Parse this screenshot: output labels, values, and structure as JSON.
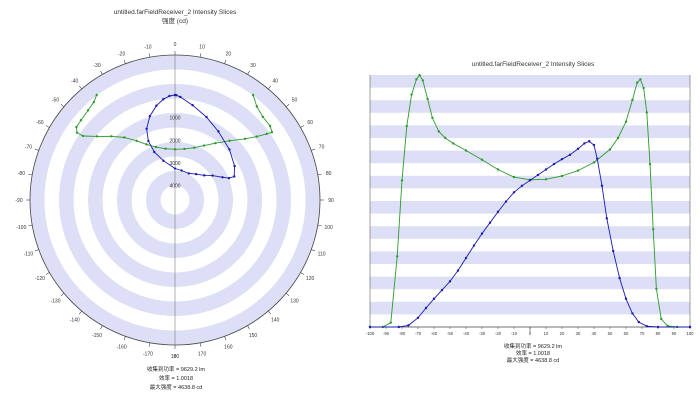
{
  "chart_data": [
    {
      "type": "polar-line",
      "title": "untitled.farFieldReceiver_2 Intensity Slices",
      "subtitle": "强度 (cd)",
      "angle_ticks": [
        -170,
        -160,
        -150,
        -140,
        -130,
        -120,
        -110,
        -100,
        -90,
        -80,
        -70,
        -60,
        -50,
        -40,
        -30,
        -20,
        -10,
        0,
        10,
        20,
        30,
        40,
        50,
        60,
        70,
        80,
        90,
        100,
        110,
        120,
        130,
        140,
        150,
        160,
        170,
        180
      ],
      "radial_ticks": [
        0,
        1000,
        2000,
        3000,
        4000
      ],
      "radial_max": 4640,
      "grid": true,
      "series": [
        {
          "color": "#2e9a2e",
          "points": [
            [
              -90,
              3460
            ],
            [
              -85,
              3600
            ],
            [
              -80,
              3900
            ],
            [
              -75,
              4300
            ],
            [
              -72,
              4580
            ],
            [
              -69,
              4638
            ],
            [
              -66,
              4450
            ],
            [
              -62,
              3900
            ],
            [
              -57,
              3350
            ],
            [
              -50,
              2920
            ],
            [
              -40,
              2640
            ],
            [
              -30,
              2520
            ],
            [
              -20,
              2450
            ],
            [
              -10,
              2410
            ],
            [
              0,
              2400
            ],
            [
              10,
              2420
            ],
            [
              20,
              2480
            ],
            [
              30,
              2580
            ],
            [
              40,
              2780
            ],
            [
              50,
              3150
            ],
            [
              58,
              3650
            ],
            [
              63,
              4050
            ],
            [
              67,
              4400
            ],
            [
              69,
              4590
            ],
            [
              72,
              4420
            ],
            [
              76,
              4000
            ],
            [
              82,
              3650
            ],
            [
              90,
              3450
            ]
          ]
        },
        {
          "color": "#1a1ab0",
          "points": [
            [
              -90,
              0
            ],
            [
              -80,
              250
            ],
            [
              -70,
              550
            ],
            [
              -60,
              950
            ],
            [
              -50,
              1450
            ],
            [
              -40,
              1950
            ],
            [
              -30,
              2350
            ],
            [
              -20,
              2680
            ],
            [
              -10,
              2950
            ],
            [
              0,
              3250
            ],
            [
              5,
              3350
            ],
            [
              10,
              3520
            ],
            [
              15,
              3620
            ],
            [
              20,
              3780
            ],
            [
              25,
              3930
            ],
            [
              30,
              4200
            ],
            [
              33,
              4380
            ],
            [
              36,
              4450
            ],
            [
              40,
              4100
            ],
            [
              45,
              3400
            ],
            [
              50,
              2500
            ],
            [
              55,
              1700
            ],
            [
              60,
              900
            ],
            [
              70,
              250
            ],
            [
              80,
              60
            ],
            [
              90,
              0
            ]
          ]
        }
      ],
      "stats": [
        "收集到功率 = 9629.2  lm",
        "效率 = 1.0018",
        "最大强度 = 4638.8  cd"
      ]
    },
    {
      "type": "line",
      "title": "untitled.farFieldReceiver_2 Intensity Slices",
      "x_ticks": [
        -100,
        -90,
        -80,
        -70,
        -60,
        -50,
        -40,
        -30,
        -20,
        -10,
        0,
        10,
        20,
        30,
        40,
        50,
        60,
        70,
        80,
        90,
        100
      ],
      "xlim": [
        -100,
        100
      ],
      "ylim": [
        0,
        4640
      ],
      "grid": true,
      "series": [
        {
          "color": "#2e9a2e",
          "points": [
            [
              -100,
              0
            ],
            [
              -92,
              0
            ],
            [
              -87,
              80
            ],
            [
              -83,
              1300
            ],
            [
              -80,
              2700
            ],
            [
              -77,
              3700
            ],
            [
              -74,
              4280
            ],
            [
              -71,
              4560
            ],
            [
              -69,
              4638
            ],
            [
              -67,
              4540
            ],
            [
              -64,
              4200
            ],
            [
              -61,
              3850
            ],
            [
              -57,
              3600
            ],
            [
              -53,
              3480
            ],
            [
              -48,
              3380
            ],
            [
              -40,
              3250
            ],
            [
              -30,
              3080
            ],
            [
              -20,
              2900
            ],
            [
              -10,
              2760
            ],
            [
              0,
              2710
            ],
            [
              10,
              2720
            ],
            [
              20,
              2780
            ],
            [
              30,
              2880
            ],
            [
              40,
              3030
            ],
            [
              50,
              3270
            ],
            [
              55,
              3480
            ],
            [
              60,
              3780
            ],
            [
              64,
              4180
            ],
            [
              67,
              4500
            ],
            [
              69,
              4560
            ],
            [
              71,
              4400
            ],
            [
              73,
              3950
            ],
            [
              75,
              3000
            ],
            [
              77,
              1800
            ],
            [
              79,
              700
            ],
            [
              82,
              150
            ],
            [
              86,
              20
            ],
            [
              92,
              0
            ],
            [
              100,
              0
            ]
          ]
        },
        {
          "color": "#1a1ab0",
          "points": [
            [
              -100,
              0
            ],
            [
              -82,
              0
            ],
            [
              -76,
              30
            ],
            [
              -70,
              170
            ],
            [
              -65,
              350
            ],
            [
              -60,
              520
            ],
            [
              -55,
              680
            ],
            [
              -50,
              840
            ],
            [
              -45,
              1040
            ],
            [
              -40,
              1270
            ],
            [
              -35,
              1500
            ],
            [
              -30,
              1720
            ],
            [
              -25,
              1920
            ],
            [
              -20,
              2120
            ],
            [
              -15,
              2310
            ],
            [
              -10,
              2480
            ],
            [
              -5,
              2600
            ],
            [
              0,
              2700
            ],
            [
              5,
              2800
            ],
            [
              10,
              2900
            ],
            [
              15,
              3000
            ],
            [
              20,
              3090
            ],
            [
              25,
              3170
            ],
            [
              30,
              3280
            ],
            [
              34,
              3380
            ],
            [
              37,
              3420
            ],
            [
              40,
              3350
            ],
            [
              42,
              3100
            ],
            [
              45,
              2600
            ],
            [
              48,
              2000
            ],
            [
              52,
              1400
            ],
            [
              56,
              900
            ],
            [
              60,
              520
            ],
            [
              64,
              250
            ],
            [
              68,
              90
            ],
            [
              73,
              15
            ],
            [
              80,
              0
            ],
            [
              100,
              0
            ]
          ]
        }
      ],
      "stats": [
        "收集到功率 = 9629.2  lm",
        "效率 = 1.0018",
        "最大强度 = 4638.8  cd"
      ]
    }
  ]
}
